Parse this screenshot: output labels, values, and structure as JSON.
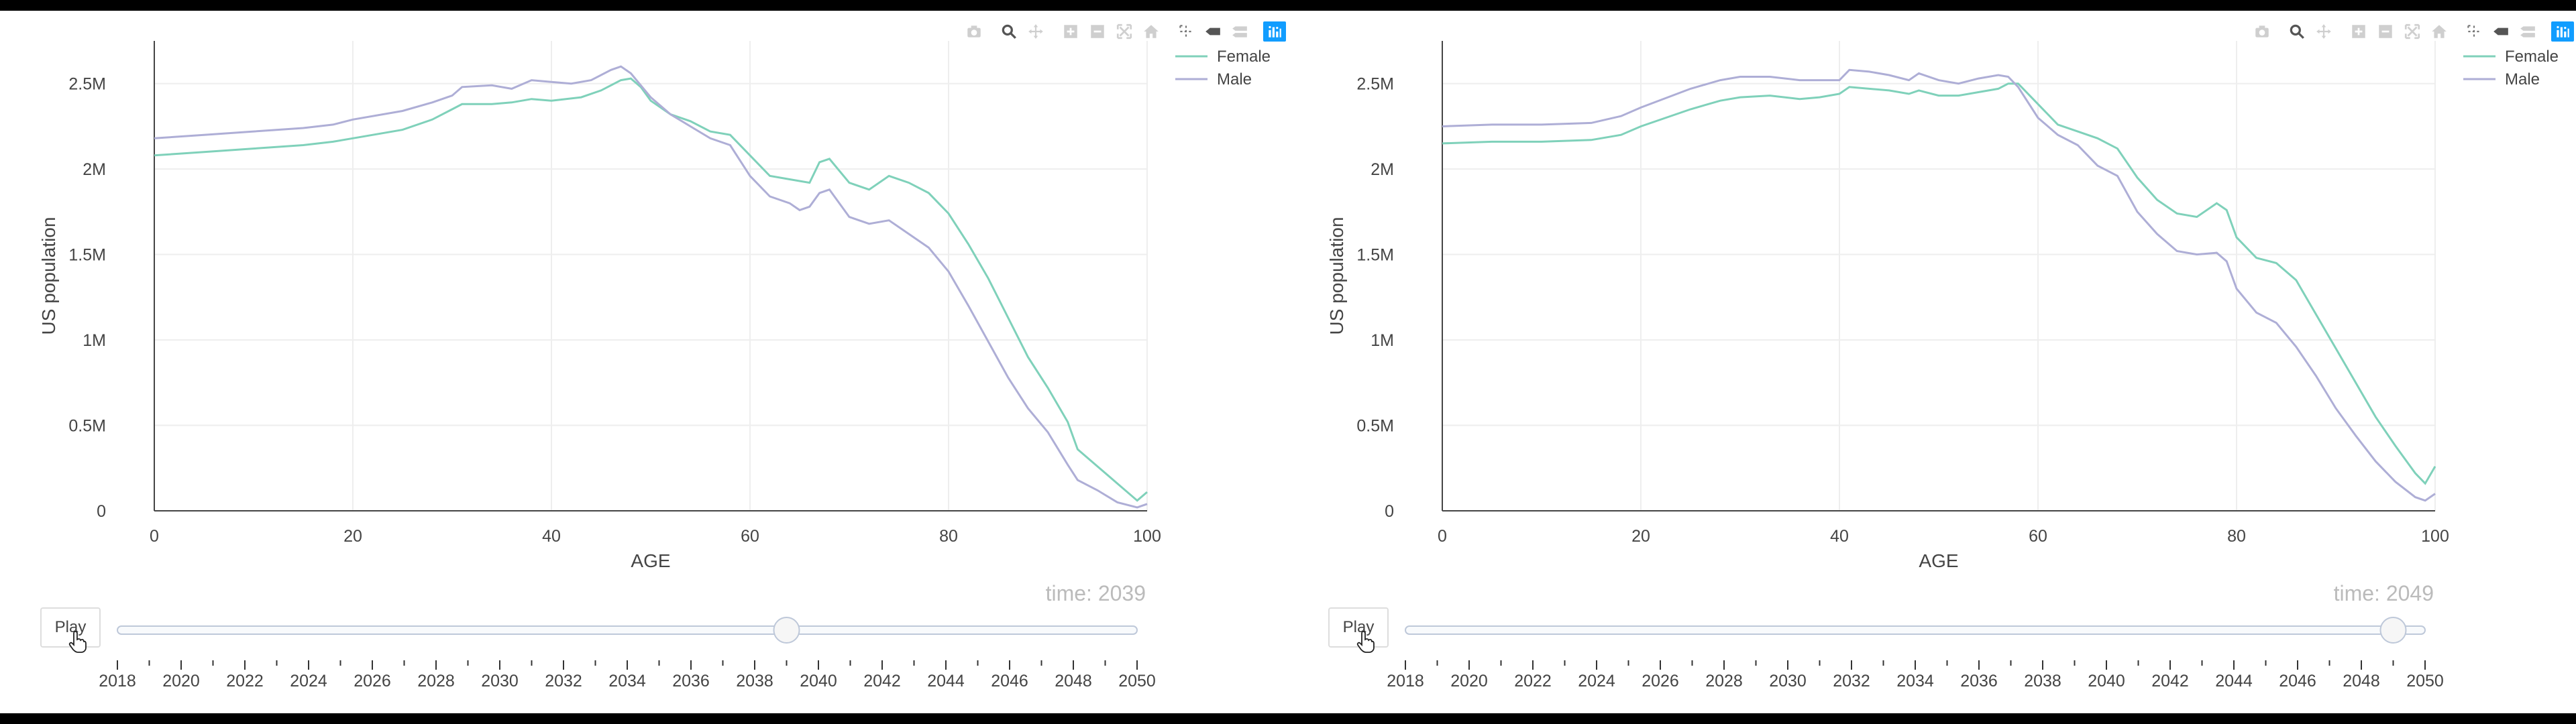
{
  "legend": [
    "Female",
    "Male"
  ],
  "play_label": "Play",
  "colors": {
    "female": "#7fd1ba",
    "male": "#aeaed6",
    "active_tool": "#119dff"
  },
  "modebar_icons": [
    "camera-icon",
    "zoom-icon",
    "pan-icon",
    "zoom-in-icon",
    "zoom-out-icon",
    "autoscale-icon",
    "home-icon",
    "spike-lines-icon",
    "hover-closest-icon",
    "hover-compare-icon",
    "plotly-logo-icon"
  ],
  "slider_ticks": [
    "2018",
    "2020",
    "2022",
    "2024",
    "2026",
    "2028",
    "2030",
    "2032",
    "2034",
    "2036",
    "2038",
    "2040",
    "2042",
    "2044",
    "2046",
    "2048",
    "2050"
  ],
  "panels": [
    {
      "time_label": "time: 2039"
    },
    {
      "time_label": "time: 2049"
    }
  ],
  "chart_data": [
    {
      "type": "line",
      "xlabel": "AGE",
      "ylabel": "US population",
      "xlim": [
        0,
        100
      ],
      "ylim": [
        0,
        2750000
      ],
      "x_ticks": [
        "0",
        "20",
        "40",
        "60",
        "80",
        "100"
      ],
      "y_ticks": [
        "0",
        "0.5M",
        "1M",
        "1.5M",
        "2M",
        "2.5M"
      ],
      "grid": true,
      "legend_placement": "top-right",
      "slider_value": 2039,
      "slider_range": [
        2018,
        2050
      ],
      "series": [
        {
          "name": "Female",
          "points": [
            [
              0,
              2080000
            ],
            [
              5,
              2100000
            ],
            [
              10,
              2120000
            ],
            [
              15,
              2140000
            ],
            [
              18,
              2160000
            ],
            [
              20,
              2180000
            ],
            [
              25,
              2230000
            ],
            [
              28,
              2290000
            ],
            [
              30,
              2350000
            ],
            [
              31,
              2380000
            ],
            [
              34,
              2380000
            ],
            [
              36,
              2390000
            ],
            [
              38,
              2410000
            ],
            [
              40,
              2400000
            ],
            [
              43,
              2420000
            ],
            [
              45,
              2460000
            ],
            [
              47,
              2520000
            ],
            [
              48,
              2530000
            ],
            [
              49,
              2480000
            ],
            [
              50,
              2400000
            ],
            [
              52,
              2320000
            ],
            [
              54,
              2280000
            ],
            [
              56,
              2220000
            ],
            [
              58,
              2200000
            ],
            [
              60,
              2080000
            ],
            [
              62,
              1960000
            ],
            [
              64,
              1940000
            ],
            [
              66,
              1920000
            ],
            [
              67,
              2040000
            ],
            [
              68,
              2060000
            ],
            [
              70,
              1920000
            ],
            [
              72,
              1880000
            ],
            [
              74,
              1960000
            ],
            [
              76,
              1920000
            ],
            [
              78,
              1860000
            ],
            [
              80,
              1740000
            ],
            [
              82,
              1560000
            ],
            [
              84,
              1360000
            ],
            [
              86,
              1130000
            ],
            [
              88,
              900000
            ],
            [
              90,
              720000
            ],
            [
              92,
              520000
            ],
            [
              93,
              360000
            ],
            [
              95,
              260000
            ],
            [
              97,
              160000
            ],
            [
              99,
              60000
            ],
            [
              100,
              110000
            ]
          ]
        },
        {
          "name": "Male",
          "points": [
            [
              0,
              2180000
            ],
            [
              5,
              2200000
            ],
            [
              10,
              2220000
            ],
            [
              15,
              2240000
            ],
            [
              18,
              2260000
            ],
            [
              20,
              2290000
            ],
            [
              25,
              2340000
            ],
            [
              28,
              2390000
            ],
            [
              30,
              2430000
            ],
            [
              31,
              2480000
            ],
            [
              34,
              2490000
            ],
            [
              36,
              2470000
            ],
            [
              38,
              2520000
            ],
            [
              40,
              2510000
            ],
            [
              42,
              2500000
            ],
            [
              44,
              2520000
            ],
            [
              46,
              2580000
            ],
            [
              47,
              2600000
            ],
            [
              48,
              2560000
            ],
            [
              50,
              2420000
            ],
            [
              52,
              2320000
            ],
            [
              54,
              2250000
            ],
            [
              56,
              2180000
            ],
            [
              58,
              2140000
            ],
            [
              60,
              1960000
            ],
            [
              62,
              1840000
            ],
            [
              64,
              1800000
            ],
            [
              65,
              1760000
            ],
            [
              66,
              1780000
            ],
            [
              67,
              1860000
            ],
            [
              68,
              1880000
            ],
            [
              70,
              1720000
            ],
            [
              72,
              1680000
            ],
            [
              74,
              1700000
            ],
            [
              76,
              1620000
            ],
            [
              78,
              1540000
            ],
            [
              80,
              1400000
            ],
            [
              82,
              1200000
            ],
            [
              84,
              990000
            ],
            [
              86,
              780000
            ],
            [
              88,
              600000
            ],
            [
              90,
              460000
            ],
            [
              92,
              270000
            ],
            [
              93,
              180000
            ],
            [
              95,
              120000
            ],
            [
              97,
              50000
            ],
            [
              99,
              20000
            ],
            [
              100,
              40000
            ]
          ]
        }
      ]
    },
    {
      "type": "line",
      "xlabel": "AGE",
      "ylabel": "US population",
      "xlim": [
        0,
        100
      ],
      "ylim": [
        0,
        2750000
      ],
      "x_ticks": [
        "0",
        "20",
        "40",
        "60",
        "80",
        "100"
      ],
      "y_ticks": [
        "0",
        "0.5M",
        "1M",
        "1.5M",
        "2M",
        "2.5M"
      ],
      "grid": true,
      "legend_placement": "top-right",
      "slider_value": 2049,
      "slider_range": [
        2018,
        2050
      ],
      "series": [
        {
          "name": "Female",
          "points": [
            [
              0,
              2150000
            ],
            [
              5,
              2160000
            ],
            [
              10,
              2160000
            ],
            [
              15,
              2170000
            ],
            [
              18,
              2200000
            ],
            [
              20,
              2250000
            ],
            [
              25,
              2350000
            ],
            [
              28,
              2400000
            ],
            [
              30,
              2420000
            ],
            [
              33,
              2430000
            ],
            [
              36,
              2410000
            ],
            [
              38,
              2420000
            ],
            [
              40,
              2440000
            ],
            [
              41,
              2480000
            ],
            [
              43,
              2470000
            ],
            [
              45,
              2460000
            ],
            [
              47,
              2440000
            ],
            [
              48,
              2460000
            ],
            [
              50,
              2430000
            ],
            [
              52,
              2430000
            ],
            [
              54,
              2450000
            ],
            [
              56,
              2470000
            ],
            [
              57,
              2500000
            ],
            [
              58,
              2500000
            ],
            [
              60,
              2380000
            ],
            [
              62,
              2260000
            ],
            [
              64,
              2220000
            ],
            [
              66,
              2180000
            ],
            [
              68,
              2120000
            ],
            [
              70,
              1950000
            ],
            [
              72,
              1820000
            ],
            [
              74,
              1740000
            ],
            [
              76,
              1720000
            ],
            [
              78,
              1800000
            ],
            [
              79,
              1760000
            ],
            [
              80,
              1600000
            ],
            [
              82,
              1480000
            ],
            [
              84,
              1450000
            ],
            [
              86,
              1350000
            ],
            [
              88,
              1150000
            ],
            [
              90,
              950000
            ],
            [
              92,
              750000
            ],
            [
              94,
              550000
            ],
            [
              96,
              380000
            ],
            [
              98,
              220000
            ],
            [
              99,
              160000
            ],
            [
              100,
              260000
            ]
          ]
        },
        {
          "name": "Male",
          "points": [
            [
              0,
              2250000
            ],
            [
              5,
              2260000
            ],
            [
              10,
              2260000
            ],
            [
              15,
              2270000
            ],
            [
              18,
              2310000
            ],
            [
              20,
              2360000
            ],
            [
              25,
              2470000
            ],
            [
              28,
              2520000
            ],
            [
              30,
              2540000
            ],
            [
              33,
              2540000
            ],
            [
              36,
              2520000
            ],
            [
              38,
              2520000
            ],
            [
              40,
              2520000
            ],
            [
              41,
              2580000
            ],
            [
              43,
              2570000
            ],
            [
              45,
              2550000
            ],
            [
              47,
              2520000
            ],
            [
              48,
              2560000
            ],
            [
              50,
              2520000
            ],
            [
              52,
              2500000
            ],
            [
              54,
              2530000
            ],
            [
              56,
              2550000
            ],
            [
              57,
              2540000
            ],
            [
              58,
              2480000
            ],
            [
              60,
              2300000
            ],
            [
              62,
              2200000
            ],
            [
              64,
              2140000
            ],
            [
              66,
              2020000
            ],
            [
              68,
              1960000
            ],
            [
              70,
              1750000
            ],
            [
              72,
              1620000
            ],
            [
              74,
              1520000
            ],
            [
              76,
              1500000
            ],
            [
              78,
              1510000
            ],
            [
              79,
              1460000
            ],
            [
              80,
              1300000
            ],
            [
              82,
              1160000
            ],
            [
              84,
              1100000
            ],
            [
              86,
              960000
            ],
            [
              88,
              790000
            ],
            [
              90,
              600000
            ],
            [
              92,
              440000
            ],
            [
              94,
              290000
            ],
            [
              96,
              170000
            ],
            [
              98,
              80000
            ],
            [
              99,
              60000
            ],
            [
              100,
              100000
            ]
          ]
        }
      ]
    }
  ]
}
